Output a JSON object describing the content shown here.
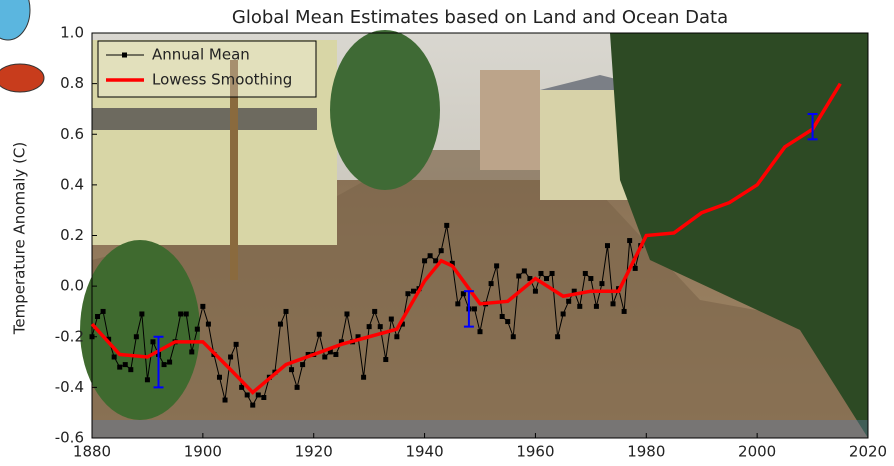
{
  "chart_data": {
    "type": "line",
    "title": "Global Mean Estimates based on Land and Ocean Data",
    "ylabel": "Temperature Anomaly (C)",
    "xlim": [
      1880,
      2020
    ],
    "xticks": [
      1880,
      1900,
      1920,
      1940,
      1960,
      1980,
      2000,
      2020
    ],
    "ylim": [
      -0.6,
      1.0
    ],
    "yticks": [
      -0.6,
      -0.4,
      -0.2,
      {
        "value": 0,
        "label": "0.0"
      },
      0.2,
      0.4,
      0.6,
      0.8,
      {
        "value": 1,
        "label": "1.0"
      }
    ],
    "legend": "upper left",
    "series": [
      {
        "name": "Annual Mean",
        "color": "#000000",
        "marker": "square",
        "x": [
          1880,
          1881,
          1882,
          1883,
          1884,
          1885,
          1886,
          1887,
          1888,
          1889,
          1890,
          1891,
          1892,
          1893,
          1894,
          1895,
          1896,
          1897,
          1898,
          1899,
          1900,
          1901,
          1902,
          1903,
          1904,
          1905,
          1906,
          1907,
          1908,
          1909,
          1910,
          1911,
          1912,
          1913,
          1914,
          1915,
          1916,
          1917,
          1918,
          1919,
          1920,
          1921,
          1922,
          1923,
          1924,
          1925,
          1926,
          1927,
          1928,
          1929,
          1930,
          1931,
          1932,
          1933,
          1934,
          1935,
          1936,
          1937,
          1938,
          1939,
          1940,
          1941,
          1942,
          1943,
          1944,
          1945,
          1946,
          1947,
          1948,
          1949,
          1950,
          1951,
          1952,
          1953,
          1954,
          1955,
          1956,
          1957,
          1958,
          1959,
          1960,
          1961,
          1962,
          1963,
          1964,
          1965,
          1966,
          1967,
          1968,
          1969,
          1970,
          1971,
          1972,
          1973,
          1974,
          1975,
          1976,
          1977,
          1978,
          1979
        ],
        "values": [
          -0.2,
          -0.12,
          -0.1,
          -0.21,
          -0.28,
          -0.32,
          -0.31,
          -0.33,
          -0.2,
          -0.11,
          -0.37,
          -0.22,
          -0.27,
          -0.31,
          -0.3,
          -0.22,
          -0.11,
          -0.11,
          -0.26,
          -0.17,
          -0.08,
          -0.15,
          -0.27,
          -0.36,
          -0.45,
          -0.28,
          -0.23,
          -0.4,
          -0.43,
          -0.47,
          -0.43,
          -0.44,
          -0.36,
          -0.34,
          -0.15,
          -0.1,
          -0.33,
          -0.4,
          -0.31,
          -0.27,
          -0.27,
          -0.19,
          -0.28,
          -0.26,
          -0.27,
          -0.22,
          -0.11,
          -0.22,
          -0.2,
          -0.36,
          -0.16,
          -0.1,
          -0.16,
          -0.29,
          -0.13,
          -0.2,
          -0.15,
          -0.03,
          -0.02,
          -0.01,
          0.1,
          0.12,
          0.1,
          0.14,
          0.24,
          0.09,
          -0.07,
          -0.03,
          -0.09,
          -0.09,
          -0.18,
          -0.07,
          0.01,
          0.08,
          -0.12,
          -0.14,
          -0.2,
          0.04,
          0.06,
          0.03,
          -0.02,
          0.05,
          0.03,
          0.05,
          -0.2,
          -0.11,
          -0.06,
          -0.02,
          -0.08,
          0.05,
          0.03,
          -0.08,
          0.01,
          0.16,
          -0.07,
          -0.01,
          -0.1,
          0.18,
          0.07,
          0.16
        ]
      },
      {
        "name": "Lowess Smoothing",
        "color": "#ff0000",
        "x": [
          1880,
          1885,
          1890,
          1895,
          1900,
          1905,
          1909,
          1915,
          1920,
          1925,
          1930,
          1935,
          1940,
          1943,
          1945,
          1950,
          1955,
          1960,
          1965,
          1970,
          1975,
          1980,
          1985,
          1990,
          1995,
          2000,
          2005,
          2010,
          2015
        ],
        "values": [
          -0.15,
          -0.27,
          -0.28,
          -0.22,
          -0.22,
          -0.33,
          -0.42,
          -0.31,
          -0.27,
          -0.23,
          -0.2,
          -0.17,
          0.02,
          0.1,
          0.08,
          -0.07,
          -0.06,
          0.03,
          -0.04,
          -0.02,
          -0.02,
          0.2,
          0.21,
          0.29,
          0.33,
          0.4,
          0.55,
          0.62,
          0.8
        ]
      }
    ],
    "error_bars": {
      "color": "#0000ff",
      "x": [
        1892,
        1948,
        2010
      ],
      "values": [
        -0.3,
        -0.09,
        0.63
      ],
      "errors": [
        0.1,
        0.07,
        0.05
      ]
    }
  }
}
